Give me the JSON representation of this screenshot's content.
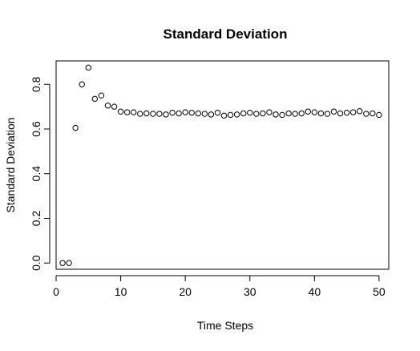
{
  "chart_data": {
    "type": "scatter",
    "title": "Standard Deviation",
    "xlabel": "Time Steps",
    "ylabel": "Standard Deviation",
    "xlim": [
      0,
      51.5
    ],
    "ylim": [
      -0.028,
      0.905
    ],
    "x_ticks": [
      0,
      10,
      20,
      30,
      40,
      50
    ],
    "y_ticks": [
      0.0,
      0.2,
      0.4,
      0.6,
      0.8
    ],
    "x_tick_labels": [
      "0",
      "10",
      "20",
      "30",
      "40",
      "50"
    ],
    "y_tick_labels": [
      "0.0",
      "0.2",
      "0.4",
      "0.6",
      "0.8"
    ],
    "grid": false,
    "marker": "open-circle",
    "series": [
      {
        "x": [
          1,
          2,
          3,
          4,
          5,
          6,
          7,
          8,
          9,
          10,
          11,
          12,
          13,
          14,
          15,
          16,
          17,
          18,
          19,
          20,
          21,
          22,
          23,
          24,
          25,
          26,
          27,
          28,
          29,
          30,
          31,
          32,
          33,
          34,
          35,
          36,
          37,
          38,
          39,
          40,
          41,
          42,
          43,
          44,
          45,
          46,
          47,
          48,
          49,
          50
        ],
        "y": [
          0.0,
          0.0,
          0.605,
          0.8,
          0.875,
          0.735,
          0.75,
          0.705,
          0.7,
          0.678,
          0.675,
          0.675,
          0.668,
          0.67,
          0.668,
          0.668,
          0.665,
          0.673,
          0.67,
          0.675,
          0.673,
          0.67,
          0.668,
          0.665,
          0.673,
          0.66,
          0.663,
          0.665,
          0.67,
          0.673,
          0.668,
          0.67,
          0.675,
          0.665,
          0.663,
          0.67,
          0.668,
          0.67,
          0.678,
          0.675,
          0.67,
          0.668,
          0.678,
          0.67,
          0.673,
          0.675,
          0.68,
          0.668,
          0.67,
          0.663
        ]
      }
    ]
  },
  "colors": {
    "axis": "#000000",
    "marker_stroke": "#000000",
    "background": "#ffffff"
  }
}
